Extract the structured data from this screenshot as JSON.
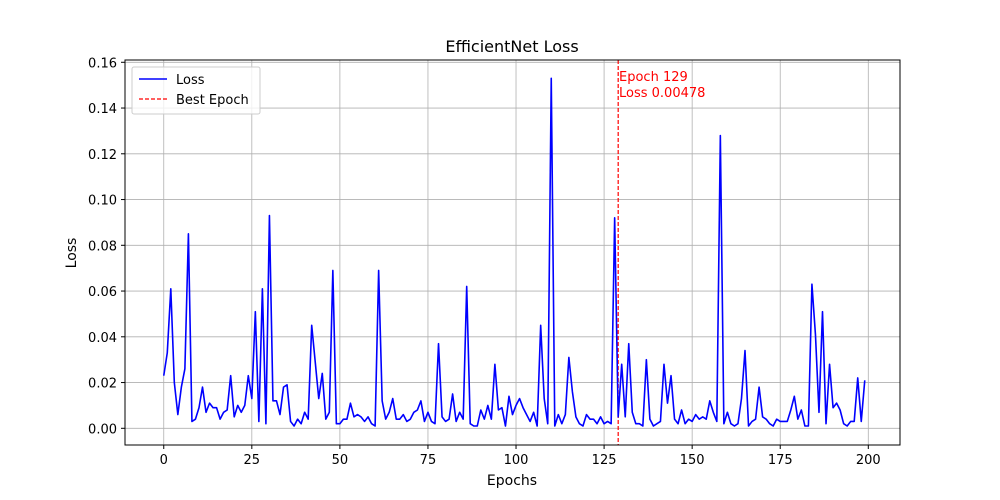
{
  "colors": {
    "line": "#0000ff",
    "best": "#ff0000",
    "grid": "#b0b0b0",
    "axis": "#000000"
  },
  "chart_data": {
    "type": "line",
    "title": "EfficientNet Loss",
    "xlabel": "Epochs",
    "ylabel": "Loss",
    "xlim": [
      -11,
      209
    ],
    "ylim": [
      -0.0073,
      0.161
    ],
    "xticks": [
      0,
      25,
      50,
      75,
      100,
      125,
      150,
      175,
      200
    ],
    "yticks": [
      0.0,
      0.02,
      0.04,
      0.06,
      0.08,
      0.1,
      0.12,
      0.14,
      0.16
    ],
    "xtick_labels": [
      "0",
      "25",
      "50",
      "75",
      "100",
      "125",
      "150",
      "175",
      "200"
    ],
    "ytick_labels": [
      "0.00",
      "0.02",
      "0.04",
      "0.06",
      "0.08",
      "0.10",
      "0.12",
      "0.14",
      "0.16"
    ],
    "grid": true,
    "legend_position": "top-left",
    "series": [
      {
        "name": "Loss",
        "x": [
          0,
          1,
          2,
          3,
          4,
          5,
          6,
          7,
          8,
          9,
          10,
          11,
          12,
          13,
          14,
          15,
          16,
          17,
          18,
          19,
          20,
          21,
          22,
          23,
          24,
          25,
          26,
          27,
          28,
          29,
          30,
          31,
          32,
          33,
          34,
          35,
          36,
          37,
          38,
          39,
          40,
          41,
          42,
          43,
          44,
          45,
          46,
          47,
          48,
          49,
          50,
          51,
          52,
          53,
          54,
          55,
          56,
          57,
          58,
          59,
          60,
          61,
          62,
          63,
          64,
          65,
          66,
          67,
          68,
          69,
          70,
          71,
          72,
          73,
          74,
          75,
          76,
          77,
          78,
          79,
          80,
          81,
          82,
          83,
          84,
          85,
          86,
          87,
          88,
          89,
          90,
          91,
          92,
          93,
          94,
          95,
          96,
          97,
          98,
          99,
          100,
          101,
          102,
          103,
          104,
          105,
          106,
          107,
          108,
          109,
          110,
          111,
          112,
          113,
          114,
          115,
          116,
          117,
          118,
          119,
          120,
          121,
          122,
          123,
          124,
          125,
          126,
          127,
          128,
          129,
          130,
          131,
          132,
          133,
          134,
          135,
          136,
          137,
          138,
          139,
          140,
          141,
          142,
          143,
          144,
          145,
          146,
          147,
          148,
          149,
          150,
          151,
          152,
          153,
          154,
          155,
          156,
          157,
          158,
          159,
          160,
          161,
          162,
          163,
          164,
          165,
          166,
          167,
          168,
          169,
          170,
          171,
          172,
          173,
          174,
          175,
          176,
          177,
          178,
          179,
          180,
          181,
          182,
          183,
          184,
          185,
          186,
          187,
          188,
          189,
          190,
          191,
          192,
          193,
          194,
          195,
          196,
          197,
          198,
          199
        ],
        "y": [
          0.023,
          0.033,
          0.061,
          0.02,
          0.006,
          0.018,
          0.026,
          0.085,
          0.003,
          0.004,
          0.009,
          0.018,
          0.007,
          0.011,
          0.009,
          0.009,
          0.004,
          0.007,
          0.008,
          0.023,
          0.005,
          0.01,
          0.007,
          0.01,
          0.023,
          0.013,
          0.051,
          0.003,
          0.061,
          0.002,
          0.093,
          0.012,
          0.012,
          0.006,
          0.018,
          0.019,
          0.003,
          0.001,
          0.004,
          0.002,
          0.007,
          0.004,
          0.045,
          0.029,
          0.013,
          0.024,
          0.004,
          0.007,
          0.069,
          0.002,
          0.002,
          0.004,
          0.004,
          0.011,
          0.005,
          0.006,
          0.005,
          0.003,
          0.005,
          0.002,
          0.001,
          0.069,
          0.012,
          0.004,
          0.007,
          0.013,
          0.004,
          0.004,
          0.006,
          0.003,
          0.004,
          0.007,
          0.008,
          0.012,
          0.003,
          0.007,
          0.003,
          0.002,
          0.037,
          0.005,
          0.003,
          0.004,
          0.015,
          0.003,
          0.007,
          0.004,
          0.062,
          0.002,
          0.001,
          0.001,
          0.008,
          0.004,
          0.01,
          0.004,
          0.028,
          0.008,
          0.009,
          0.001,
          0.014,
          0.006,
          0.01,
          0.013,
          0.009,
          0.006,
          0.003,
          0.007,
          0.001,
          0.045,
          0.013,
          0.002,
          0.153,
          0.001,
          0.006,
          0.002,
          0.006,
          0.031,
          0.016,
          0.005,
          0.002,
          0.001,
          0.006,
          0.004,
          0.004,
          0.002,
          0.005,
          0.002,
          0.003,
          0.002,
          0.092,
          0.005,
          0.028,
          0.005,
          0.037,
          0.007,
          0.002,
          0.002,
          0.001,
          0.03,
          0.004,
          0.001,
          0.002,
          0.003,
          0.028,
          0.011,
          0.023,
          0.004,
          0.002,
          0.008,
          0.002,
          0.004,
          0.003,
          0.006,
          0.004,
          0.005,
          0.004,
          0.012,
          0.007,
          0.003,
          0.128,
          0.002,
          0.007,
          0.002,
          0.001,
          0.002,
          0.013,
          0.034,
          0.001,
          0.003,
          0.004,
          0.018,
          0.005,
          0.004,
          0.002,
          0.001,
          0.004,
          0.003,
          0.003,
          0.003,
          0.008,
          0.014,
          0.004,
          0.008,
          0.001,
          0.001,
          0.063,
          0.041,
          0.007,
          0.051,
          0.002,
          0.028,
          0.009,
          0.011,
          0.008,
          0.002,
          0.001,
          0.003,
          0.003,
          0.022,
          0.003,
          0.021
        ]
      },
      {
        "name": "Best Epoch",
        "x": 129
      }
    ],
    "annotation": {
      "line1": "Epoch 129",
      "line2": "Loss 0.00478"
    }
  }
}
